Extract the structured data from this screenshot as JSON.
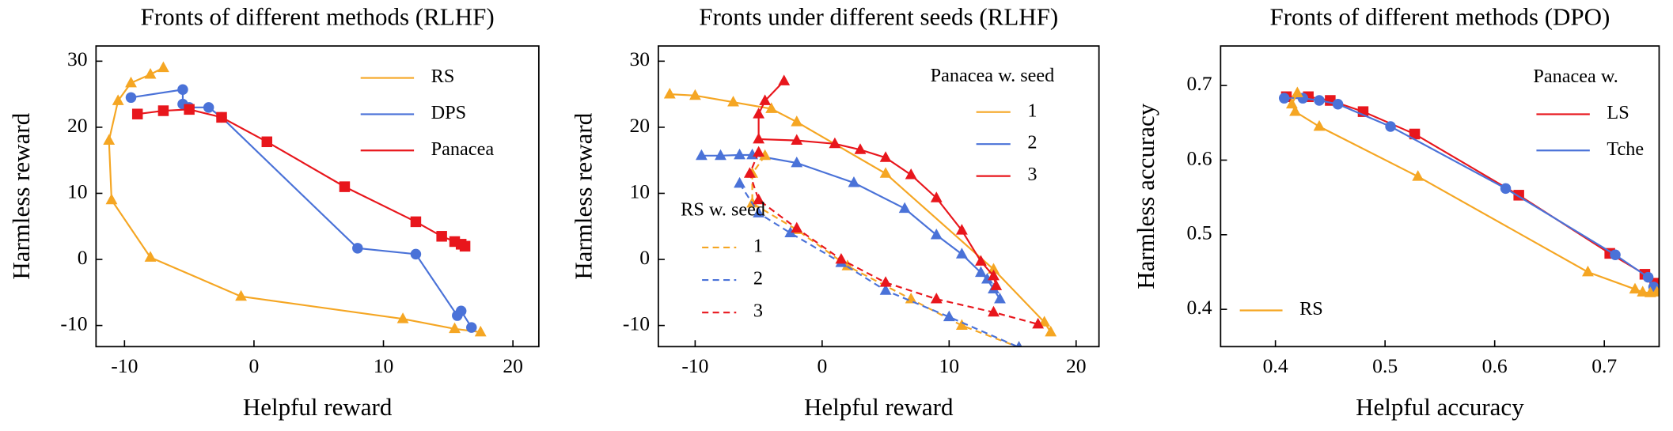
{
  "chart_data": [
    {
      "type": "line",
      "title": "Fronts of different methods (RLHF)",
      "x_label": "Helpful reward",
      "y_label": "Harmless reward",
      "xlim": [
        -12.2,
        22
      ],
      "ylim": [
        -13.2,
        32.3
      ],
      "xticks": [
        -10,
        0,
        10,
        20
      ],
      "yticks": [
        -10,
        0,
        10,
        20,
        30
      ],
      "legends": [
        {
          "series": [
            {
              "name": "RS",
              "color": "#f5a623",
              "marker": "triangle",
              "dash": "solid",
              "x": [
                -7,
                -8,
                -9.5,
                -10.5,
                -11.2,
                -11,
                -8,
                -1,
                11.5,
                15.5,
                17.5
              ],
              "values": [
                29,
                28,
                26.7,
                24,
                18,
                9,
                0.3,
                -5.6,
                -9,
                -10.5,
                -11
              ]
            },
            {
              "name": "DPS",
              "color": "#4a72d8",
              "marker": "circle",
              "dash": "solid",
              "x": [
                -9.5,
                -5.5,
                -5.5,
                -5,
                -3.5,
                -2.5,
                8,
                12.5,
                15.7,
                16,
                16.8
              ],
              "values": [
                24.5,
                25.7,
                23.5,
                23,
                23,
                21.5,
                1.7,
                0.8,
                -8.5,
                -7.8,
                -10.3
              ]
            },
            {
              "name": "Panacea",
              "color": "#e8161c",
              "marker": "square",
              "dash": "solid",
              "x": [
                -9,
                -7,
                -5,
                -2.5,
                1,
                7,
                12.5,
                14.5,
                15.5,
                16,
                16.3
              ],
              "values": [
                22,
                22.5,
                22.7,
                21.5,
                17.8,
                11,
                5.7,
                3.5,
                2.7,
                2.3,
                2
              ]
            }
          ]
        }
      ]
    },
    {
      "type": "line",
      "title": "Fronts under different seeds (RLHF)",
      "x_label": "Helpful reward",
      "y_label": "Harmless reward",
      "xlim": [
        -12.9,
        21.8
      ],
      "ylim": [
        -13.2,
        32.3
      ],
      "xticks": [
        -10,
        0,
        10,
        20
      ],
      "yticks": [
        -10,
        0,
        10,
        20,
        30
      ],
      "legends": [
        {
          "title": "Panacea w. seed",
          "series": [
            {
              "name": "1",
              "color": "#f5a623",
              "marker": "triangle",
              "dash": "solid",
              "x": [
                -12,
                -10,
                -7,
                -4,
                -2,
                5,
                13.5,
                17.5,
                18
              ],
              "values": [
                25,
                24.8,
                23.8,
                22.8,
                20.8,
                13,
                -1.5,
                -9.5,
                -11
              ]
            },
            {
              "name": "2",
              "color": "#4a72d8",
              "marker": "triangle",
              "dash": "solid",
              "x": [
                -9.5,
                -8,
                -6.5,
                -5.5,
                -2,
                2.5,
                6.5,
                9,
                11,
                12.5,
                13,
                13.5,
                14
              ],
              "values": [
                15.7,
                15.7,
                15.8,
                15.8,
                14.6,
                11.6,
                7.7,
                3.7,
                0.8,
                -2,
                -3,
                -4.5,
                -6
              ]
            },
            {
              "name": "3",
              "color": "#e8161c",
              "marker": "triangle",
              "dash": "solid",
              "x": [
                -3,
                -4.5,
                -5,
                -5,
                -2,
                1,
                3,
                5,
                7,
                9,
                11,
                12.5,
                13.5,
                13.7
              ],
              "values": [
                27,
                24,
                22,
                18.2,
                18,
                17.5,
                16.6,
                15.4,
                12.8,
                9.3,
                4.4,
                -0.3,
                -2.5,
                -4
              ]
            }
          ]
        },
        {
          "title": "RS w. seed",
          "series": [
            {
              "name": "1",
              "color": "#f5a623",
              "marker": "triangle",
              "dash": "dashed",
              "x": [
                -4.5,
                -5.5,
                -5.5,
                -2,
                2,
                7,
                11,
                15.5
              ],
              "values": [
                15.7,
                13,
                8.5,
                4.5,
                -1,
                -6,
                -10,
                -13.3
              ]
            },
            {
              "name": "2",
              "color": "#4a72d8",
              "marker": "triangle",
              "dash": "dashed",
              "x": [
                -6.5,
                -5,
                -2.5,
                1.5,
                5,
                10,
                15.5
              ],
              "values": [
                11.5,
                7,
                4,
                -0.5,
                -4.7,
                -8.7,
                -13.3
              ]
            },
            {
              "name": "3",
              "color": "#e8161c",
              "marker": "triangle",
              "dash": "dashed",
              "x": [
                -5,
                -5.7,
                -5,
                -2,
                1.5,
                5,
                9,
                13.5,
                17
              ],
              "values": [
                16.2,
                13,
                9,
                4.7,
                0,
                -3.5,
                -6,
                -8,
                -9.8
              ]
            }
          ]
        }
      ]
    },
    {
      "type": "line",
      "title": "Fronts of different methods (DPO)",
      "x_label": "Helpful accuracy",
      "y_label": "Harmless accuracy",
      "xlim": [
        0.35,
        0.75
      ],
      "ylim": [
        0.35,
        0.753
      ],
      "xticks": [
        0.4,
        0.5,
        0.6,
        0.7
      ],
      "yticks": [
        0.4,
        0.5,
        0.6,
        0.7
      ],
      "legends": [
        {
          "title": "Panacea w.",
          "series": [
            {
              "name": "LS",
              "color": "#e8161c",
              "marker": "square",
              "dash": "solid",
              "x": [
                0.41,
                0.43,
                0.45,
                0.48,
                0.527,
                0.622,
                0.705,
                0.737,
                0.746,
                0.749
              ],
              "values": [
                0.685,
                0.685,
                0.68,
                0.665,
                0.635,
                0.553,
                0.475,
                0.447,
                0.435,
                0.428
              ]
            },
            {
              "name": "Tche",
              "color": "#4a72d8",
              "marker": "circle",
              "dash": "solid",
              "x": [
                0.408,
                0.425,
                0.44,
                0.457,
                0.505,
                0.61,
                0.71,
                0.74,
                0.745
              ],
              "values": [
                0.683,
                0.683,
                0.68,
                0.675,
                0.645,
                0.562,
                0.473,
                0.443,
                0.43
              ]
            }
          ]
        },
        {
          "series": [
            {
              "name": "RS",
              "color": "#f5a623",
              "marker": "triangle",
              "dash": "solid",
              "x": [
                0.42,
                0.415,
                0.418,
                0.44,
                0.53,
                0.685,
                0.728,
                0.735,
                0.742,
                0.748
              ],
              "values": [
                0.69,
                0.675,
                0.665,
                0.645,
                0.578,
                0.45,
                0.427,
                0.423,
                0.422,
                0.423
              ]
            }
          ]
        }
      ]
    }
  ]
}
